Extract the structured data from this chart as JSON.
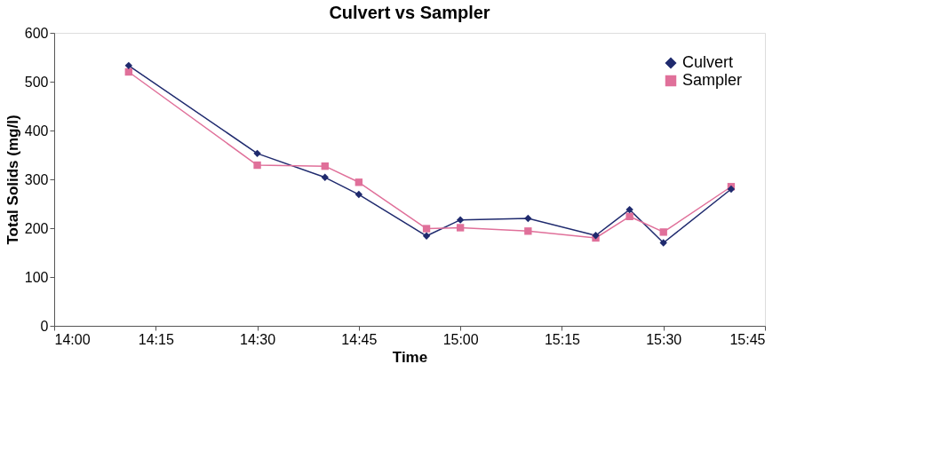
{
  "chart_data": {
    "type": "line",
    "title": "Culvert vs Sampler",
    "xlabel": "Time",
    "ylabel": "Total Solids (mg/l)",
    "x": [
      14.1833,
      14.5,
      14.6667,
      14.75,
      14.9167,
      15,
      15.1667,
      15.3333,
      15.4167,
      15.5,
      15.6667
    ],
    "series": [
      {
        "name": "Culvert",
        "color": "#1f2a6e",
        "marker": "diamond",
        "values": [
          533,
          353,
          304,
          269,
          184,
          217,
          220,
          185,
          238,
          170,
          280
        ]
      },
      {
        "name": "Sampler",
        "color": "#e0709a",
        "marker": "square",
        "values": [
          520,
          329,
          327,
          294,
          199,
          201,
          194,
          180,
          224,
          192,
          285
        ]
      }
    ],
    "xlim": [
      14,
      15.75
    ],
    "xticks": [
      {
        "value": 14,
        "label": "14:00"
      },
      {
        "value": 14.25,
        "label": "14:15"
      },
      {
        "value": 14.5,
        "label": "14:30"
      },
      {
        "value": 14.75,
        "label": "14:45"
      },
      {
        "value": 15,
        "label": "15:00"
      },
      {
        "value": 15.25,
        "label": "15:15"
      },
      {
        "value": 15.5,
        "label": "15:30"
      },
      {
        "value": 15.75,
        "label": "15:45"
      }
    ],
    "ylim": [
      0,
      600
    ],
    "yticks": [
      0,
      100,
      200,
      300,
      400,
      500,
      600
    ],
    "grid": false,
    "legend": "top right",
    "line_style": "solid"
  }
}
